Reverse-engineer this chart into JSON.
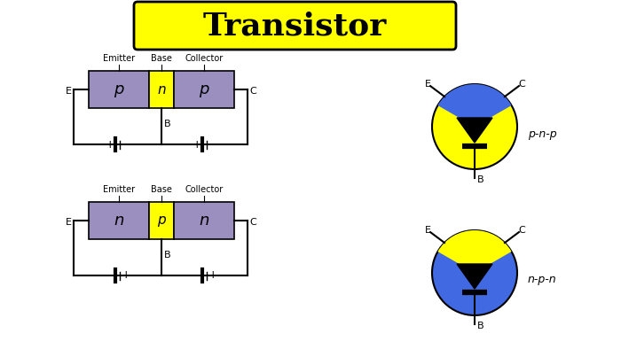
{
  "title": "Transistor",
  "title_bg": "#FFFF00",
  "title_color": "#000000",
  "bg_color": "#FFFFFF",
  "purple_color": "#9B8FC0",
  "yellow_color": "#FFFF00",
  "blue_color": "#4169E1",
  "black_color": "#000000",
  "pnp_label": "p-n-p",
  "npn_label": "n-p-n",
  "emitter_label": "Emitter",
  "base_label": "Base",
  "collector_label": "Collector"
}
